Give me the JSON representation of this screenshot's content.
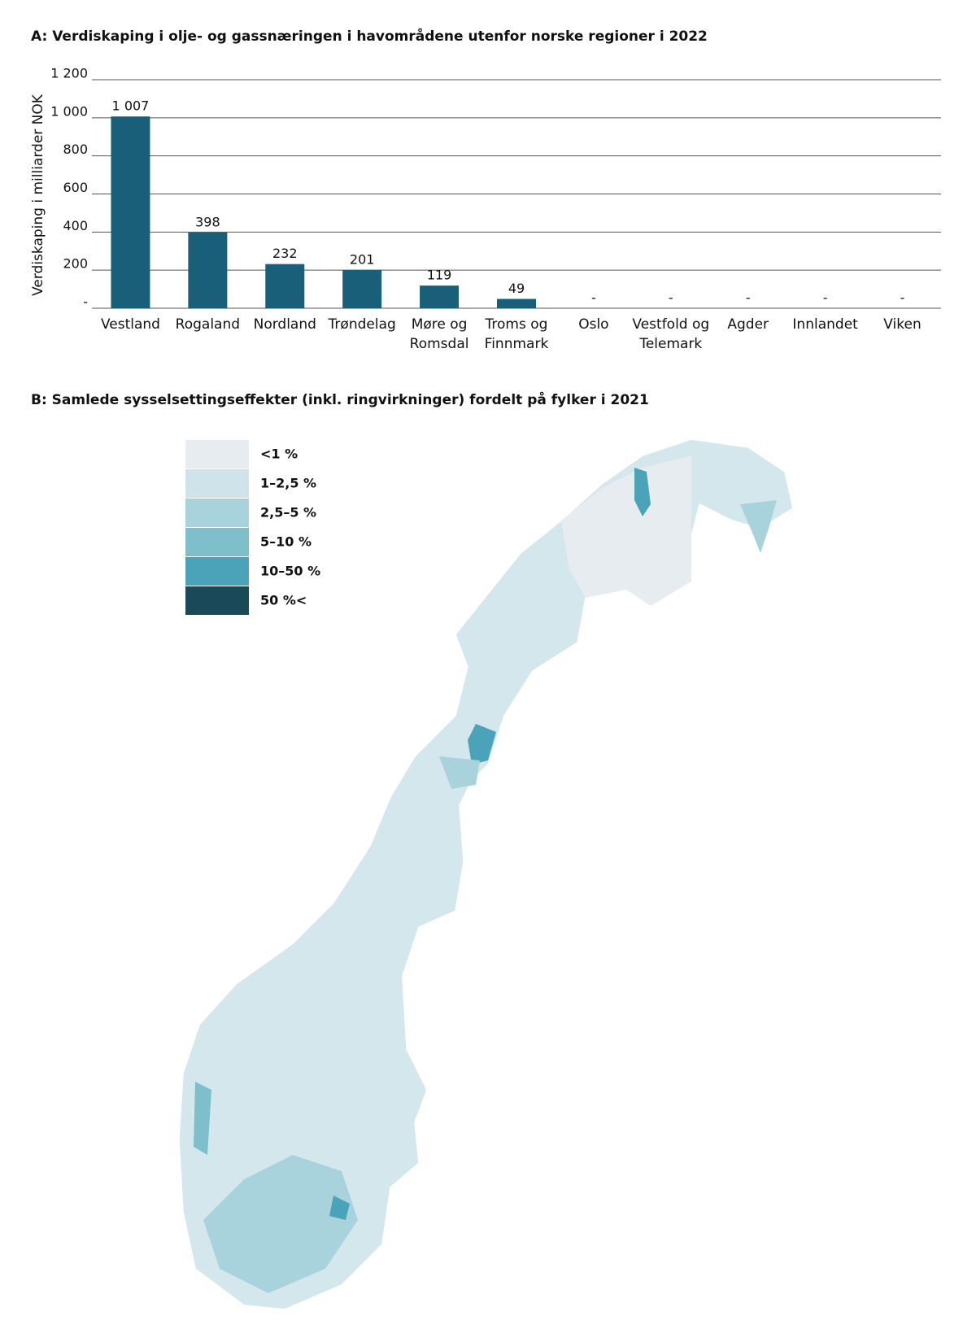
{
  "chart_data": [
    {
      "type": "bar",
      "title": "A: Verdiskaping i olje- og gassnæringen i havområdene utenfor norske regioner i 2022",
      "ylabel": "Verdiskaping i milliarder NOK",
      "categories": [
        "Vestland",
        "Rogaland",
        "Nordland",
        "Trøndelag",
        "Møre og Romsdal",
        "Troms og Finnmark",
        "Oslo",
        "Vestfold og Telemark",
        "Agder",
        "Innlandet",
        "Viken"
      ],
      "values": [
        1007,
        398,
        232,
        201,
        119,
        49,
        null,
        null,
        null,
        null,
        null
      ],
      "value_labels": [
        "1 007",
        "398",
        "232",
        "201",
        "119",
        "49",
        "-",
        "-",
        "-",
        "-",
        "-"
      ],
      "color": "#1a5f7a",
      "ylim": [
        0,
        1200
      ],
      "yticks": [
        {
          "value": 0,
          "label": "-"
        },
        200,
        400,
        600,
        800,
        {
          "value": 1000,
          "label": "1 000"
        },
        {
          "value": 1200,
          "label": "1 200"
        }
      ],
      "grid": true
    },
    {
      "type": "choropleth",
      "title": "B: Samlede sysselsettingseffekter (inkl. ringvirkninger) fordelt på fylker i 2021",
      "legend": [
        {
          "label": "<1 %",
          "color": "#e6ecef"
        },
        {
          "label": "1–2,5 %",
          "color": "#cfe4ea"
        },
        {
          "label": "2,5–5 %",
          "color": "#a9d3dc"
        },
        {
          "label": "5–10 %",
          "color": "#7fbfcc"
        },
        {
          "label": "10–50 %",
          "color": "#4aa3b8"
        },
        {
          "label": "50 %<",
          "color": "#1a4a5a"
        }
      ]
    }
  ]
}
